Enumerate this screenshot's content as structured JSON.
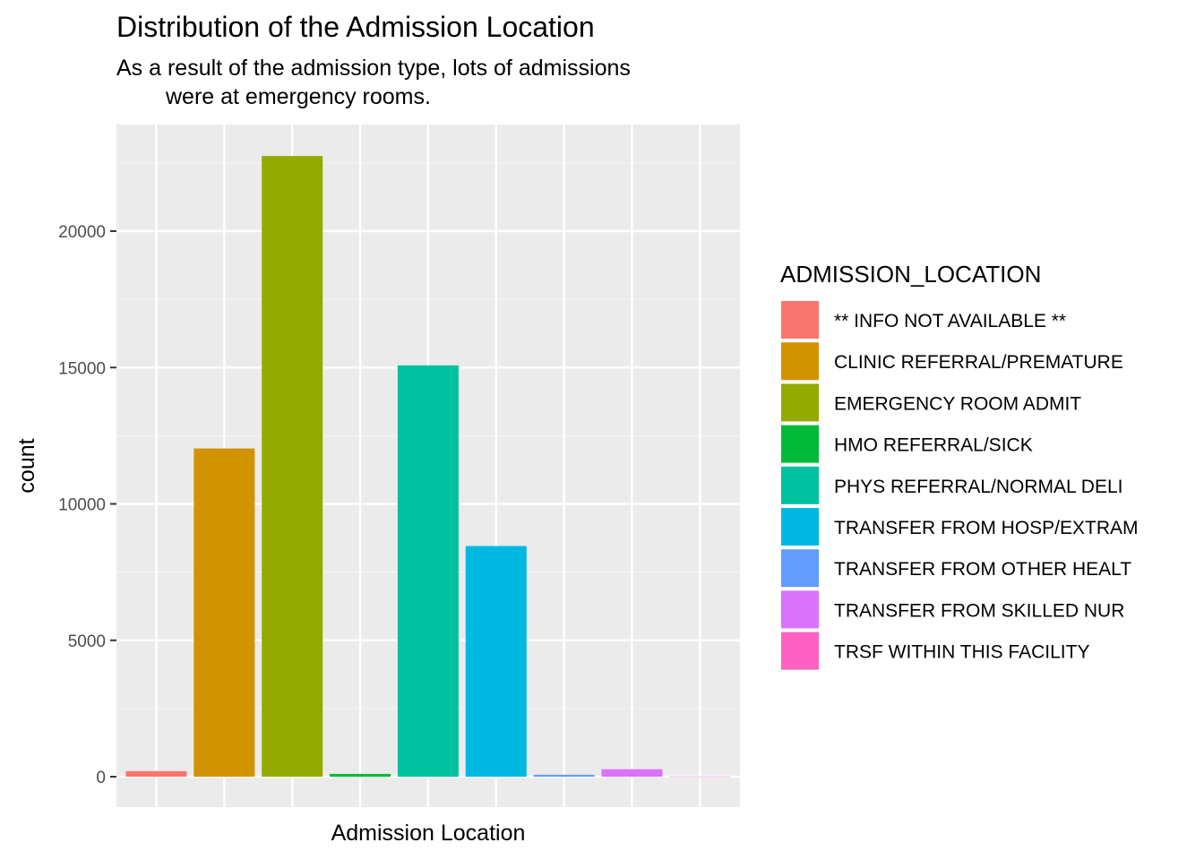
{
  "chart_data": {
    "type": "bar",
    "title": "Distribution of the Admission Location",
    "subtitle": [
      "As a result of the admission type, lots of admissions",
      "were at emergency rooms."
    ],
    "xlabel": "Admission Location",
    "ylabel": "count",
    "ylim": [
      -1050,
      24000
    ],
    "yticks": [
      0,
      5000,
      10000,
      15000,
      20000
    ],
    "grid": true,
    "legend_position": "right",
    "legend_title": "ADMISSION_LOCATION",
    "categories": [
      "** INFO NOT AVAILABLE **",
      "CLINIC REFERRAL/PREMATURE",
      "EMERGENCY ROOM ADMIT",
      "HMO REFERRAL/SICK",
      "PHYS REFERRAL/NORMAL DELI",
      "TRANSFER FROM HOSP/EXTRAM",
      "TRANSFER FROM OTHER HEALT",
      "TRANSFER FROM SKILLED NUR",
      "TRSF WITHIN THIS FACILITY"
    ],
    "values": [
      204,
      12032,
      22754,
      102,
      15079,
      8456,
      71,
      273,
      5
    ],
    "colors": [
      "#F8766D",
      "#D39200",
      "#93AA00",
      "#00BA38",
      "#00C19F",
      "#00B9E3",
      "#619CFF",
      "#DB72FB",
      "#FF61C3"
    ]
  }
}
